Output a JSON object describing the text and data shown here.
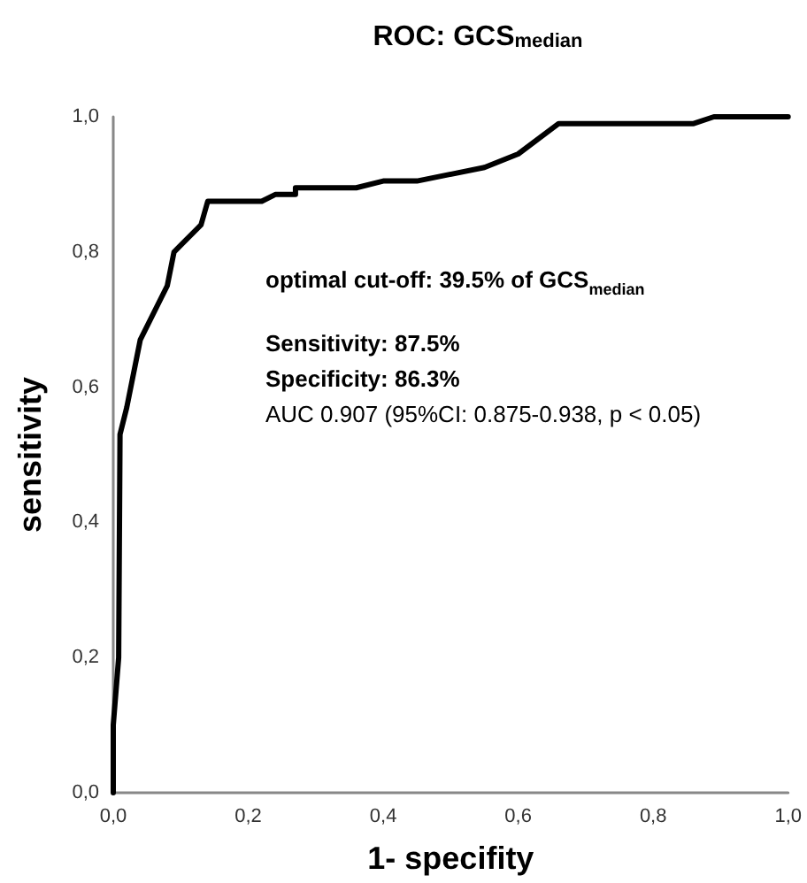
{
  "chart_data": {
    "type": "line",
    "title": "ROC: GCS$_{median}$",
    "xlabel": "1- specifity",
    "ylabel": "sensitivity",
    "annotations": [
      "optimal cut-off: 39.5% of GCS$_{median}$",
      "Sensitivity: 87.5%",
      "Specificity: 86.3%",
      "AUC 0.907 (95%CI: 0.875-0.938, p < 0.05)"
    ],
    "x": [
      0,
      0,
      0.008,
      0.01,
      0.02,
      0.04,
      0.07,
      0.08,
      0.09,
      0.1,
      0.13,
      0.14,
      0.22,
      0.24,
      0.27,
      0.27,
      0.36,
      0.4,
      0.45,
      0.55,
      0.6,
      0.66,
      0.86,
      0.89,
      1.0
    ],
    "values": [
      0,
      0.1,
      0.2,
      0.53,
      0.57,
      0.67,
      0.73,
      0.75,
      0.8,
      0.81,
      0.84,
      0.875,
      0.875,
      0.885,
      0.885,
      0.895,
      0.895,
      0.905,
      0.905,
      0.925,
      0.945,
      0.99,
      0.99,
      1.0,
      1.0
    ],
    "color": "#000000",
    "line_style": "solid",
    "xlim": [
      0,
      1
    ],
    "ylim": [
      0,
      1
    ],
    "xticks": [
      {
        "value": 0,
        "label": "0,0"
      },
      {
        "value": 0.2,
        "label": "0,2"
      },
      {
        "value": 0.4,
        "label": "0,4"
      },
      {
        "value": 0.6,
        "label": "0,6"
      },
      {
        "value": 0.8,
        "label": "0,8"
      },
      {
        "value": 1,
        "label": "1,0"
      }
    ],
    "yticks": [
      {
        "value": 0,
        "label": "0,0"
      },
      {
        "value": 0.2,
        "label": "0,2"
      },
      {
        "value": 0.4,
        "label": "0,4"
      },
      {
        "value": 0.6,
        "label": "0,6"
      },
      {
        "value": 0.8,
        "label": "0,8"
      },
      {
        "value": 1,
        "label": "1,0"
      }
    ],
    "grid": false
  }
}
